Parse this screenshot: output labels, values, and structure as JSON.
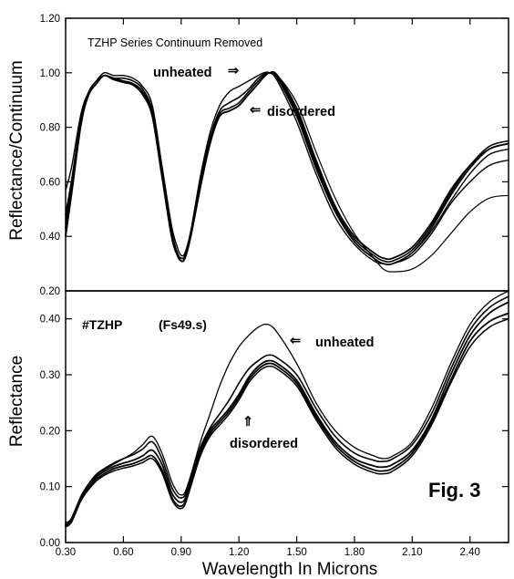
{
  "figure_label": "Fig. 3",
  "colors": {
    "ink": "#000000",
    "background": "#ffffff"
  },
  "chart_data": [
    {
      "type": "line",
      "title": "TZHP Series Continuum Removed",
      "xlabel": "",
      "ylabel": "Reflectance/Continuum",
      "xlim": [
        0.3,
        2.6
      ],
      "ylim": [
        0.2,
        1.2
      ],
      "y_ticks": [
        "1.20",
        "1.00",
        "0.80",
        "0.60",
        "0.40",
        "0.20"
      ],
      "grid": false,
      "annotations": [
        {
          "text": "unheated",
          "arrow": "⇒"
        },
        {
          "text": "disordered",
          "arrow": "⇐"
        }
      ],
      "series": [
        {
          "x": [
            0.3,
            0.33,
            0.38,
            0.42,
            0.46,
            0.5,
            0.55,
            0.6,
            0.65,
            0.7,
            0.75,
            0.8,
            0.85,
            0.88,
            0.9,
            0.92,
            0.95,
            1.0,
            1.05,
            1.1,
            1.15,
            1.2,
            1.25,
            1.3,
            1.33,
            1.36,
            1.4,
            1.5,
            1.6,
            1.7,
            1.8,
            1.9,
            1.95,
            2.0,
            2.1,
            2.2,
            2.3,
            2.4,
            2.5,
            2.6
          ],
          "values": [
            0.57,
            0.65,
            0.85,
            0.93,
            0.97,
            1.0,
            0.99,
            0.99,
            0.98,
            0.95,
            0.88,
            0.66,
            0.44,
            0.36,
            0.33,
            0.34,
            0.42,
            0.62,
            0.78,
            0.88,
            0.93,
            0.95,
            0.97,
            0.99,
            1.0,
            1.0,
            0.97,
            0.82,
            0.63,
            0.47,
            0.37,
            0.31,
            0.3,
            0.3,
            0.34,
            0.42,
            0.53,
            0.63,
            0.7,
            0.72
          ]
        },
        {
          "x": [
            0.3,
            0.33,
            0.38,
            0.42,
            0.46,
            0.5,
            0.55,
            0.6,
            0.65,
            0.7,
            0.75,
            0.8,
            0.85,
            0.88,
            0.9,
            0.92,
            0.95,
            1.0,
            1.05,
            1.1,
            1.15,
            1.2,
            1.25,
            1.3,
            1.33,
            1.36,
            1.4,
            1.5,
            1.6,
            1.7,
            1.8,
            1.9,
            1.95,
            2.0,
            2.1,
            2.2,
            2.3,
            2.4,
            2.5,
            2.6
          ],
          "values": [
            0.48,
            0.6,
            0.83,
            0.93,
            0.97,
            0.99,
            0.98,
            0.98,
            0.97,
            0.94,
            0.86,
            0.64,
            0.42,
            0.34,
            0.32,
            0.33,
            0.41,
            0.6,
            0.76,
            0.86,
            0.89,
            0.91,
            0.94,
            0.98,
            0.995,
            1.0,
            0.98,
            0.84,
            0.65,
            0.49,
            0.38,
            0.32,
            0.3,
            0.3,
            0.34,
            0.43,
            0.55,
            0.65,
            0.72,
            0.74
          ]
        },
        {
          "x": [
            0.3,
            0.33,
            0.38,
            0.42,
            0.46,
            0.5,
            0.55,
            0.6,
            0.65,
            0.7,
            0.75,
            0.8,
            0.85,
            0.88,
            0.9,
            0.92,
            0.95,
            1.0,
            1.05,
            1.1,
            1.15,
            1.2,
            1.25,
            1.3,
            1.33,
            1.36,
            1.4,
            1.5,
            1.6,
            1.7,
            1.8,
            1.9,
            1.95,
            2.0,
            2.1,
            2.2,
            2.3,
            2.4,
            2.5,
            2.6
          ],
          "values": [
            0.43,
            0.57,
            0.82,
            0.92,
            0.96,
            0.99,
            0.98,
            0.97,
            0.96,
            0.93,
            0.85,
            0.63,
            0.41,
            0.34,
            0.31,
            0.32,
            0.4,
            0.59,
            0.75,
            0.85,
            0.87,
            0.89,
            0.93,
            0.97,
            0.99,
            1.0,
            0.985,
            0.86,
            0.67,
            0.5,
            0.39,
            0.33,
            0.31,
            0.31,
            0.35,
            0.44,
            0.56,
            0.66,
            0.73,
            0.75
          ]
        },
        {
          "x": [
            0.3,
            0.33,
            0.38,
            0.42,
            0.46,
            0.5,
            0.55,
            0.6,
            0.65,
            0.7,
            0.75,
            0.8,
            0.85,
            0.88,
            0.9,
            0.92,
            0.95,
            1.0,
            1.05,
            1.1,
            1.15,
            1.2,
            1.25,
            1.3,
            1.33,
            1.36,
            1.4,
            1.5,
            1.6,
            1.7,
            1.8,
            1.9,
            1.95,
            2.0,
            2.1,
            2.2,
            2.3,
            2.4,
            2.5,
            2.6
          ],
          "values": [
            0.4,
            0.55,
            0.81,
            0.92,
            0.96,
            0.99,
            0.975,
            0.965,
            0.955,
            0.92,
            0.84,
            0.62,
            0.4,
            0.33,
            0.31,
            0.32,
            0.4,
            0.58,
            0.74,
            0.84,
            0.86,
            0.88,
            0.92,
            0.96,
            0.985,
            1.0,
            0.99,
            0.87,
            0.68,
            0.51,
            0.4,
            0.34,
            0.32,
            0.32,
            0.36,
            0.45,
            0.57,
            0.66,
            0.72,
            0.74
          ]
        },
        {
          "x": [
            0.3,
            0.33,
            0.38,
            0.42,
            0.46,
            0.5,
            0.55,
            0.6,
            0.65,
            0.7,
            0.75,
            0.8,
            0.85,
            0.88,
            0.9,
            0.92,
            0.95,
            1.0,
            1.05,
            1.1,
            1.15,
            1.2,
            1.25,
            1.3,
            1.33,
            1.36,
            1.4,
            1.5,
            1.6,
            1.7,
            1.8,
            1.9,
            1.95,
            2.0,
            2.1,
            2.2,
            2.3,
            2.4,
            2.5,
            2.6
          ],
          "values": [
            0.46,
            0.58,
            0.82,
            0.92,
            0.96,
            0.99,
            0.975,
            0.97,
            0.96,
            0.93,
            0.85,
            0.63,
            0.41,
            0.33,
            0.31,
            0.32,
            0.4,
            0.59,
            0.75,
            0.84,
            0.86,
            0.88,
            0.92,
            0.96,
            0.985,
            1.0,
            0.985,
            0.85,
            0.66,
            0.5,
            0.38,
            0.32,
            0.3,
            0.3,
            0.33,
            0.41,
            0.52,
            0.6,
            0.66,
            0.68
          ]
        },
        {
          "x": [
            0.3,
            0.33,
            0.38,
            0.42,
            0.46,
            0.5,
            0.55,
            0.6,
            0.65,
            0.7,
            0.75,
            0.8,
            0.85,
            0.88,
            0.9,
            0.92,
            0.95,
            1.0,
            1.05,
            1.1,
            1.15,
            1.2,
            1.25,
            1.3,
            1.33,
            1.36,
            1.4,
            1.5,
            1.6,
            1.7,
            1.8,
            1.9,
            1.95,
            2.0,
            2.1,
            2.2,
            2.3,
            2.4,
            2.5,
            2.6
          ],
          "values": [
            0.44,
            0.57,
            0.82,
            0.92,
            0.96,
            0.99,
            0.975,
            0.965,
            0.955,
            0.92,
            0.84,
            0.62,
            0.4,
            0.33,
            0.31,
            0.32,
            0.4,
            0.58,
            0.74,
            0.84,
            0.86,
            0.88,
            0.92,
            0.96,
            0.985,
            1.0,
            0.99,
            0.89,
            0.71,
            0.54,
            0.41,
            0.32,
            0.28,
            0.27,
            0.28,
            0.33,
            0.41,
            0.49,
            0.54,
            0.55
          ]
        }
      ]
    },
    {
      "type": "line",
      "title": "#TZHP",
      "subtitle": "(Fs49.s)",
      "xlabel": "Wavelength In Microns",
      "ylabel": "Reflectance",
      "xlim": [
        0.3,
        2.6
      ],
      "ylim": [
        0.0,
        0.45
      ],
      "x_ticks": [
        "0.30",
        "0.60",
        "0.90",
        "1.20",
        "1.50",
        "1.80",
        "2.10",
        "2.40"
      ],
      "y_ticks": [
        "0.40",
        "0.30",
        "0.20",
        "0.10",
        "0.00"
      ],
      "grid": false,
      "annotations": [
        {
          "text": "unheated",
          "arrow": "⇐"
        },
        {
          "text": "disordered",
          "arrow": "⇑"
        }
      ],
      "series": [
        {
          "x": [
            0.3,
            0.33,
            0.38,
            0.42,
            0.46,
            0.5,
            0.55,
            0.6,
            0.65,
            0.7,
            0.75,
            0.8,
            0.85,
            0.88,
            0.9,
            0.92,
            0.95,
            1.0,
            1.05,
            1.1,
            1.15,
            1.2,
            1.25,
            1.3,
            1.35,
            1.4,
            1.5,
            1.6,
            1.7,
            1.8,
            1.9,
            1.95,
            2.0,
            2.1,
            2.2,
            2.3,
            2.4,
            2.5,
            2.6
          ],
          "values": [
            0.03,
            0.038,
            0.08,
            0.1,
            0.12,
            0.13,
            0.14,
            0.15,
            0.16,
            0.175,
            0.19,
            0.16,
            0.11,
            0.09,
            0.085,
            0.09,
            0.12,
            0.18,
            0.23,
            0.28,
            0.32,
            0.35,
            0.37,
            0.385,
            0.39,
            0.375,
            0.32,
            0.25,
            0.2,
            0.17,
            0.155,
            0.15,
            0.155,
            0.18,
            0.24,
            0.32,
            0.39,
            0.43,
            0.45
          ]
        },
        {
          "x": [
            0.3,
            0.33,
            0.38,
            0.42,
            0.46,
            0.5,
            0.55,
            0.6,
            0.65,
            0.7,
            0.75,
            0.8,
            0.85,
            0.88,
            0.9,
            0.92,
            0.95,
            1.0,
            1.05,
            1.1,
            1.15,
            1.2,
            1.25,
            1.3,
            1.35,
            1.4,
            1.5,
            1.6,
            1.7,
            1.8,
            1.9,
            1.95,
            2.0,
            2.1,
            2.2,
            2.3,
            2.4,
            2.5,
            2.6
          ],
          "values": [
            0.035,
            0.043,
            0.083,
            0.105,
            0.122,
            0.132,
            0.142,
            0.15,
            0.157,
            0.167,
            0.18,
            0.15,
            0.1,
            0.083,
            0.08,
            0.085,
            0.115,
            0.17,
            0.205,
            0.23,
            0.255,
            0.285,
            0.31,
            0.325,
            0.335,
            0.33,
            0.3,
            0.24,
            0.19,
            0.16,
            0.147,
            0.145,
            0.15,
            0.175,
            0.23,
            0.31,
            0.38,
            0.42,
            0.44
          ]
        },
        {
          "x": [
            0.3,
            0.33,
            0.38,
            0.42,
            0.46,
            0.5,
            0.55,
            0.6,
            0.65,
            0.7,
            0.75,
            0.8,
            0.85,
            0.88,
            0.9,
            0.92,
            0.95,
            1.0,
            1.05,
            1.1,
            1.15,
            1.2,
            1.25,
            1.3,
            1.35,
            1.4,
            1.5,
            1.6,
            1.7,
            1.8,
            1.9,
            1.95,
            2.0,
            2.1,
            2.2,
            2.3,
            2.4,
            2.5,
            2.6
          ],
          "values": [
            0.032,
            0.04,
            0.08,
            0.1,
            0.117,
            0.127,
            0.136,
            0.142,
            0.147,
            0.155,
            0.165,
            0.14,
            0.09,
            0.075,
            0.072,
            0.078,
            0.11,
            0.165,
            0.2,
            0.22,
            0.24,
            0.265,
            0.295,
            0.315,
            0.325,
            0.32,
            0.29,
            0.23,
            0.18,
            0.15,
            0.137,
            0.135,
            0.14,
            0.165,
            0.22,
            0.3,
            0.37,
            0.41,
            0.43
          ]
        },
        {
          "x": [
            0.3,
            0.33,
            0.38,
            0.42,
            0.46,
            0.5,
            0.55,
            0.6,
            0.65,
            0.7,
            0.75,
            0.8,
            0.85,
            0.88,
            0.9,
            0.92,
            0.95,
            1.0,
            1.05,
            1.1,
            1.15,
            1.2,
            1.25,
            1.3,
            1.35,
            1.4,
            1.5,
            1.6,
            1.7,
            1.8,
            1.9,
            1.95,
            2.0,
            2.1,
            2.2,
            2.3,
            2.4,
            2.5,
            2.6
          ],
          "values": [
            0.03,
            0.038,
            0.077,
            0.097,
            0.113,
            0.123,
            0.132,
            0.137,
            0.141,
            0.148,
            0.155,
            0.13,
            0.082,
            0.067,
            0.065,
            0.072,
            0.105,
            0.16,
            0.195,
            0.215,
            0.235,
            0.26,
            0.29,
            0.31,
            0.32,
            0.315,
            0.285,
            0.225,
            0.175,
            0.145,
            0.13,
            0.128,
            0.133,
            0.16,
            0.215,
            0.29,
            0.36,
            0.395,
            0.41
          ]
        },
        {
          "x": [
            0.3,
            0.33,
            0.38,
            0.42,
            0.46,
            0.5,
            0.55,
            0.6,
            0.65,
            0.7,
            0.75,
            0.8,
            0.85,
            0.88,
            0.9,
            0.92,
            0.95,
            1.0,
            1.05,
            1.1,
            1.15,
            1.2,
            1.25,
            1.3,
            1.35,
            1.4,
            1.5,
            1.6,
            1.7,
            1.8,
            1.9,
            1.95,
            2.0,
            2.1,
            2.2,
            2.3,
            2.4,
            2.5,
            2.6
          ],
          "values": [
            0.028,
            0.036,
            0.075,
            0.095,
            0.11,
            0.12,
            0.128,
            0.133,
            0.137,
            0.143,
            0.15,
            0.125,
            0.078,
            0.063,
            0.061,
            0.068,
            0.1,
            0.155,
            0.19,
            0.21,
            0.23,
            0.255,
            0.285,
            0.305,
            0.315,
            0.31,
            0.28,
            0.22,
            0.17,
            0.14,
            0.125,
            0.123,
            0.128,
            0.155,
            0.21,
            0.285,
            0.35,
            0.385,
            0.4
          ]
        }
      ]
    }
  ]
}
